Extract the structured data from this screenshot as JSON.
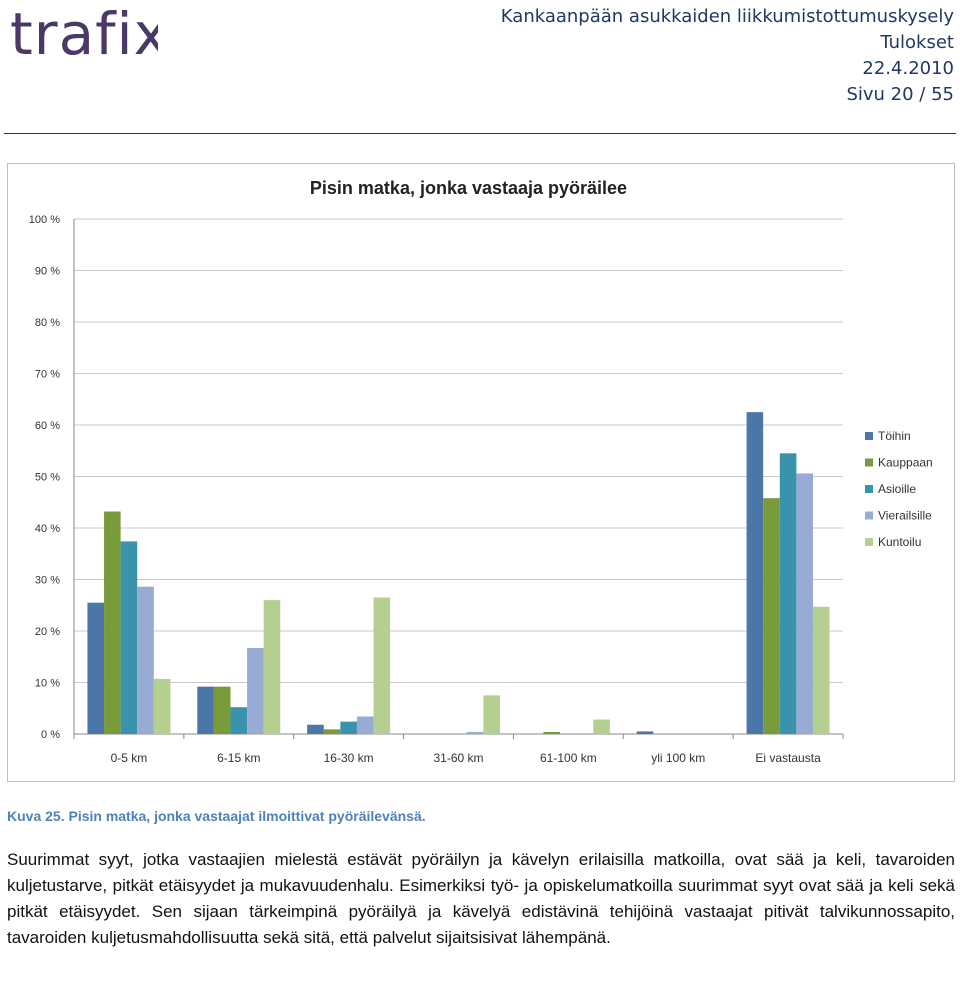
{
  "logo": {
    "text": "trafix"
  },
  "header": {
    "title": "Kankaanpään asukkaiden liikkumistottumuskysely",
    "subtitle": "Tulokset",
    "date": "22.4.2010",
    "page": "Sivu 20 / 55"
  },
  "chart_data": {
    "type": "bar",
    "title": "Pisin matka, jonka vastaaja pyöräilee",
    "xlabel": "",
    "ylabel": "",
    "ylim": [
      0,
      100
    ],
    "yticks": [
      "0 %",
      "10 %",
      "20 %",
      "30 %",
      "40 %",
      "50 %",
      "60 %",
      "70 %",
      "80 %",
      "90 %",
      "100 %"
    ],
    "grid": true,
    "legend_position": "right",
    "categories": [
      "0-5 km",
      "6-15 km",
      "16-30 km",
      "31-60 km",
      "61-100 km",
      "yli 100 km",
      "Ei vastausta"
    ],
    "series": [
      {
        "name": "Töihin",
        "color": "#4a76a8",
        "values": [
          25.5,
          9.2,
          1.8,
          0,
          0,
          0.5,
          62.5
        ]
      },
      {
        "name": "Kauppaan",
        "color": "#7a9b3c",
        "values": [
          43.2,
          9.2,
          0.9,
          0,
          0.4,
          0,
          45.8
        ]
      },
      {
        "name": "Asioille",
        "color": "#3a93ad",
        "values": [
          37.4,
          5.2,
          2.4,
          0,
          0,
          0,
          54.5
        ]
      },
      {
        "name": "Vierailsille",
        "color": "#98abd4",
        "values": [
          28.6,
          16.7,
          3.4,
          0.4,
          0,
          0,
          50.6
        ]
      },
      {
        "name": "Kuntoilu",
        "color": "#b5cf90",
        "values": [
          10.7,
          26.0,
          26.5,
          7.5,
          2.8,
          0,
          24.7
        ]
      }
    ]
  },
  "caption": "Kuva 25. Pisin matka, jonka vastaajat ilmoittivat pyöräilevänsä.",
  "paragraph": "Suurimmat syyt, jotka vastaajien mielestä estävät pyöräilyn ja kävelyn erilaisilla matkoilla, ovat sää ja keli, tavaroiden kuljetustarve, pitkät etäisyydet ja mukavuudenhalu. Esimerkiksi työ- ja opiskelumatkoilla suurimmat syyt ovat sää ja keli sekä pitkät etäisyydet. Sen sijaan tärkeimpinä pyöräilyä ja kävelyä edistävinä tehijöinä vastaajat pitivät talvikunnossapito, tavaroiden kuljetusmahdollisuutta sekä sitä, että palvelut sijaitsisivat lähempänä."
}
